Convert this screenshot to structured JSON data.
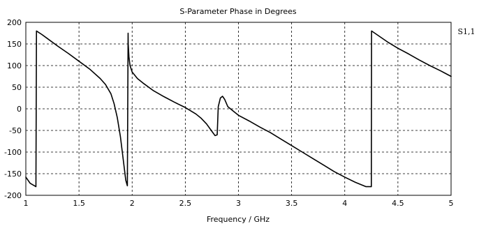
{
  "chart_data": {
    "type": "line",
    "title": "S-Parameter Phase in Degrees",
    "xlabel": "Frequency / GHz",
    "ylabel": "",
    "xlim": [
      1,
      5
    ],
    "ylim": [
      -200,
      200
    ],
    "x_ticks": [
      "1",
      "1.5",
      "2",
      "2.5",
      "3",
      "3.5",
      "4",
      "4.5",
      "5"
    ],
    "y_ticks": [
      "200",
      "150",
      "100",
      "50",
      "0",
      "-50",
      "-100",
      "-150",
      "-200"
    ],
    "grid": true,
    "legend": "right",
    "series": [
      {
        "name": "S1,1",
        "color": "#000000",
        "x": [
          1.0,
          1.04,
          1.095,
          1.1,
          1.15,
          1.2,
          1.3,
          1.4,
          1.5,
          1.6,
          1.7,
          1.75,
          1.8,
          1.83,
          1.86,
          1.89,
          1.92,
          1.94,
          1.955,
          1.962,
          1.963,
          1.97,
          1.98,
          2.0,
          2.05,
          2.1,
          2.2,
          2.3,
          2.4,
          2.5,
          2.6,
          2.65,
          2.7,
          2.75,
          2.78,
          2.8,
          2.81,
          2.83,
          2.85,
          2.87,
          2.9,
          2.95,
          3.0,
          3.1,
          3.2,
          3.3,
          3.4,
          3.5,
          3.6,
          3.7,
          3.8,
          3.9,
          4.0,
          4.1,
          4.2,
          4.25,
          4.252,
          4.3,
          4.4,
          4.5,
          4.6,
          4.7,
          4.8,
          4.9,
          5.0
        ],
        "y": [
          -158,
          -172,
          -180,
          180,
          172,
          163,
          145,
          128,
          110,
          92,
          70,
          56,
          35,
          12,
          -20,
          -65,
          -125,
          -165,
          -178,
          175,
          150,
          120,
          100,
          85,
          70,
          60,
          42,
          28,
          15,
          3,
          -12,
          -22,
          -35,
          -52,
          -62,
          -60,
          5,
          25,
          29,
          22,
          5,
          -5,
          -15,
          -28,
          -42,
          -55,
          -70,
          -85,
          -100,
          -115,
          -130,
          -145,
          -158,
          -170,
          -180,
          -180,
          180,
          172,
          155,
          140,
          127,
          113,
          100,
          88,
          75
        ]
      }
    ]
  }
}
